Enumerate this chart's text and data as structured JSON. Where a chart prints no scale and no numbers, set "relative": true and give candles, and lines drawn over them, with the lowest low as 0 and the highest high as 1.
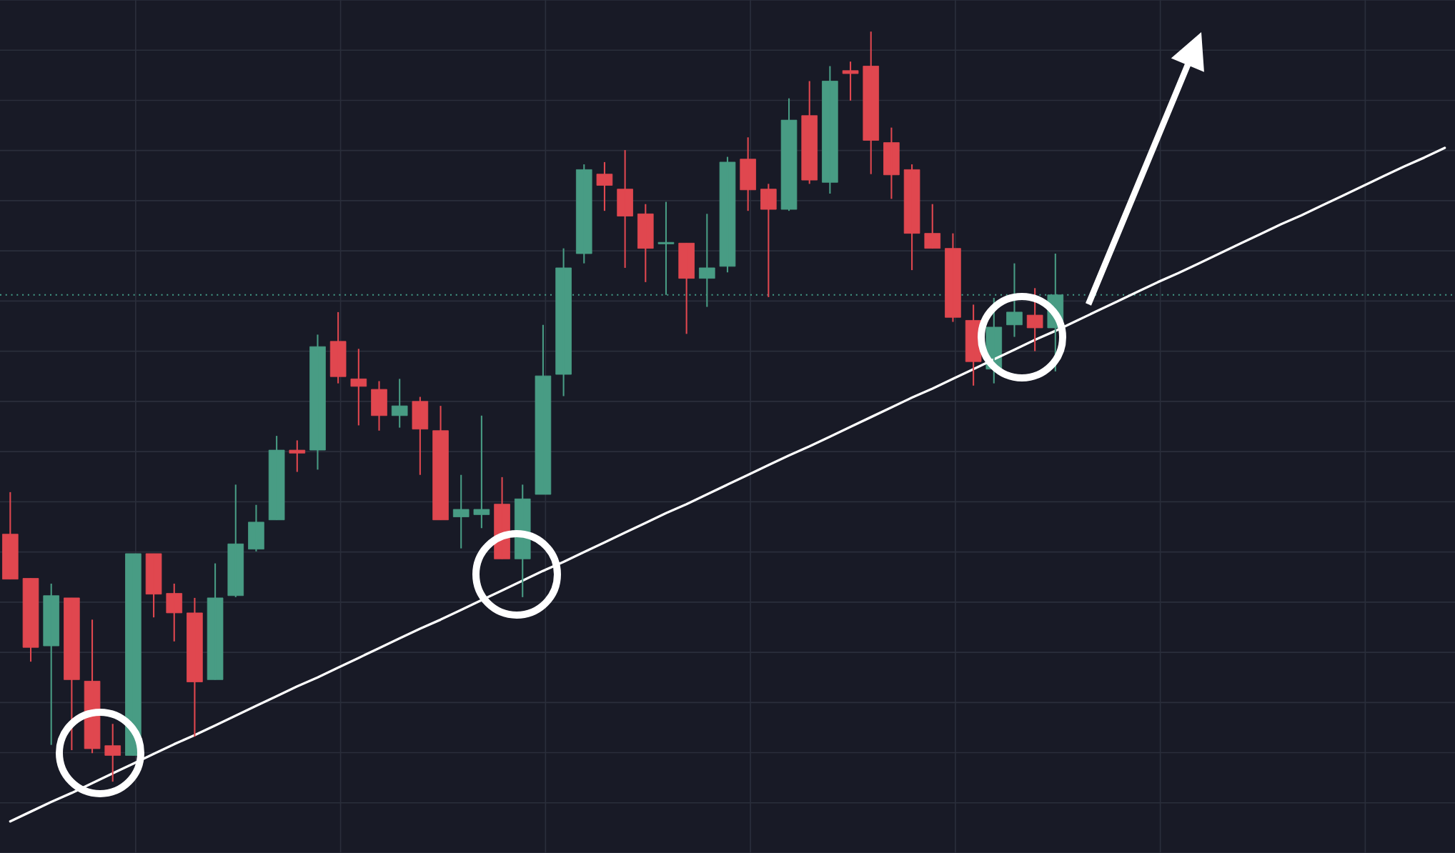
{
  "chart_data": {
    "type": "candlestick",
    "relative": true,
    "categories": [
      null,
      null,
      null,
      null,
      null,
      null,
      null,
      null,
      null,
      null,
      null,
      null,
      null,
      null,
      null,
      null,
      null,
      null,
      null,
      null,
      null,
      null,
      null,
      null,
      null,
      null,
      null,
      null,
      null,
      null,
      null,
      null,
      null,
      null,
      null,
      null,
      null,
      null,
      null,
      null,
      null,
      null,
      null,
      null,
      null,
      null,
      null,
      null,
      null,
      null,
      null,
      null,
      null,
      null,
      null,
      null,
      null,
      null,
      null,
      null,
      null,
      null,
      null,
      null,
      null,
      null,
      null,
      null,
      null,
      null,
      null
    ],
    "ohlc": [
      [
        0.33,
        0.386,
        0.27,
        0.27
      ],
      [
        0.271,
        0.271,
        0.16,
        0.179
      ],
      [
        0.181,
        0.264,
        0.049,
        0.248
      ],
      [
        0.245,
        0.245,
        0.042,
        0.136
      ],
      [
        0.134,
        0.216,
        0.038,
        0.044
      ],
      [
        0.048,
        0.077,
        0,
        0.035
      ],
      [
        0.035,
        0.304,
        0.035,
        0.304
      ],
      [
        0.304,
        0.304,
        0.219,
        0.25
      ],
      [
        0.251,
        0.264,
        0.187,
        0.225
      ],
      [
        0.225,
        0.245,
        0.06,
        0.133
      ],
      [
        0.136,
        0.291,
        0.136,
        0.245
      ],
      [
        0.248,
        0.396,
        0.246,
        0.317
      ],
      [
        0.31,
        0.369,
        0.307,
        0.346
      ],
      [
        0.349,
        0.461,
        0.349,
        0.442
      ],
      [
        0.442,
        0.455,
        0.413,
        0.438
      ],
      [
        0.442,
        0.596,
        0.416,
        0.58
      ],
      [
        0.587,
        0.626,
        0.531,
        0.54
      ],
      [
        0.537,
        0.577,
        0.475,
        0.527
      ],
      [
        0.523,
        0.534,
        0.468,
        0.488
      ],
      [
        0.488,
        0.537,
        0.472,
        0.501
      ],
      [
        0.507,
        0.513,
        0.409,
        0.47
      ],
      [
        0.468,
        0.501,
        0.349,
        0.349
      ],
      [
        0.353,
        0.409,
        0.311,
        0.363
      ],
      [
        0.356,
        0.488,
        0.338,
        0.363
      ],
      [
        0.37,
        0.406,
        0.297,
        0.297
      ],
      [
        0.297,
        0.396,
        0.246,
        0.377
      ],
      [
        0.383,
        0.609,
        0.383,
        0.541
      ],
      [
        0.543,
        0.711,
        0.514,
        0.685
      ],
      [
        0.704,
        0.823,
        0.691,
        0.816
      ],
      [
        0.81,
        0.826,
        0.761,
        0.795
      ],
      [
        0.79,
        0.842,
        0.685,
        0.754
      ],
      [
        0.757,
        0.77,
        0.666,
        0.711
      ],
      [
        0.717,
        0.773,
        0.649,
        0.719
      ],
      [
        0.718,
        0.718,
        0.597,
        0.671
      ],
      [
        0.671,
        0.757,
        0.633,
        0.685
      ],
      [
        0.687,
        0.833,
        0.679,
        0.826
      ],
      [
        0.83,
        0.859,
        0.761,
        0.789
      ],
      [
        0.79,
        0.797,
        0.646,
        0.763
      ],
      [
        0.763,
        0.911,
        0.761,
        0.882
      ],
      [
        0.888,
        0.934,
        0.797,
        0.802
      ],
      [
        0.799,
        0.954,
        0.784,
        0.934
      ],
      [
        0.948,
        0.96,
        0.908,
        0.944
      ],
      [
        0.954,
        1,
        0.81,
        0.855
      ],
      [
        0.852,
        0.872,
        0.777,
        0.809
      ],
      [
        0.816,
        0.823,
        0.682,
        0.731
      ],
      [
        0.731,
        0.77,
        0.711,
        0.711
      ],
      [
        0.711,
        0.731,
        0.613,
        0.619
      ],
      [
        0.615,
        0.636,
        0.528,
        0.56
      ],
      [
        0.55,
        0.645,
        0.531,
        0.606
      ],
      [
        0.609,
        0.691,
        0.593,
        0.626
      ],
      [
        0.622,
        0.658,
        0.574,
        0.605
      ],
      [
        0.605,
        0.704,
        0.547,
        0.649
      ],
      null,
      null,
      null,
      null,
      null,
      null,
      null,
      null,
      null,
      null,
      null,
      null,
      null,
      null,
      null,
      null,
      null,
      null,
      null
    ],
    "colors": [
      "#e0474f",
      "#e0474f",
      "#489c84",
      "#e0474f",
      "#e0474f",
      "#e0474f",
      "#489c84",
      "#e0474f",
      "#e0474f",
      "#e0474f",
      "#489c84",
      "#489c84",
      "#489c84",
      "#489c84",
      "#e0474f",
      "#489c84",
      "#e0474f",
      "#e0474f",
      "#e0474f",
      "#489c84",
      "#e0474f",
      "#e0474f",
      "#489c84",
      "#489c84",
      "#e0474f",
      "#489c84",
      "#489c84",
      "#489c84",
      "#489c84",
      "#e0474f",
      "#e0474f",
      "#e0474f",
      "#489c84",
      "#e0474f",
      "#489c84",
      "#489c84",
      "#e0474f",
      "#e0474f",
      "#489c84",
      "#e0474f",
      "#489c84",
      "#e0474f",
      "#e0474f",
      "#e0474f",
      "#e0474f",
      "#e0474f",
      "#e0474f",
      "#e0474f",
      "#489c84",
      "#489c84",
      "#e0474f",
      "#489c84",
      null,
      null,
      null,
      null,
      null,
      null,
      null,
      null,
      null,
      null,
      null,
      null,
      null,
      null,
      null,
      null,
      null,
      null,
      null
    ],
    "series": [
      {
        "type": "line",
        "color": "#ffffff",
        "values": [
          -0.053,
          -0.04,
          -0.027,
          -0.015,
          -0.002,
          0.011,
          0.024,
          0.037,
          0.05,
          0.062,
          0.075,
          0.088,
          0.101,
          0.114,
          0.127,
          0.139,
          0.152,
          0.165,
          0.178,
          0.191,
          0.204,
          0.216,
          0.229,
          0.242,
          0.255,
          0.268,
          0.281,
          0.293,
          0.306,
          0.319,
          0.332,
          0.345,
          0.358,
          0.37,
          0.383,
          0.396,
          0.409,
          0.422,
          0.435,
          0.447,
          0.46,
          0.473,
          0.486,
          0.499,
          0.512,
          0.524,
          0.537,
          0.55,
          0.563,
          0.576,
          0.589,
          0.601,
          0.614,
          0.627,
          0.64,
          0.653,
          0.666,
          0.678,
          0.691,
          0.704,
          0.717,
          0.73,
          0.743,
          0.755,
          0.768,
          0.781,
          0.794,
          0.807,
          0.82,
          0.832,
          0.845
        ]
      }
    ],
    "ref_lines": [
      {
        "axis": "y",
        "value": 0.649,
        "color": "#45a08a",
        "line_style": "dotted"
      }
    ],
    "grid": true
  }
}
